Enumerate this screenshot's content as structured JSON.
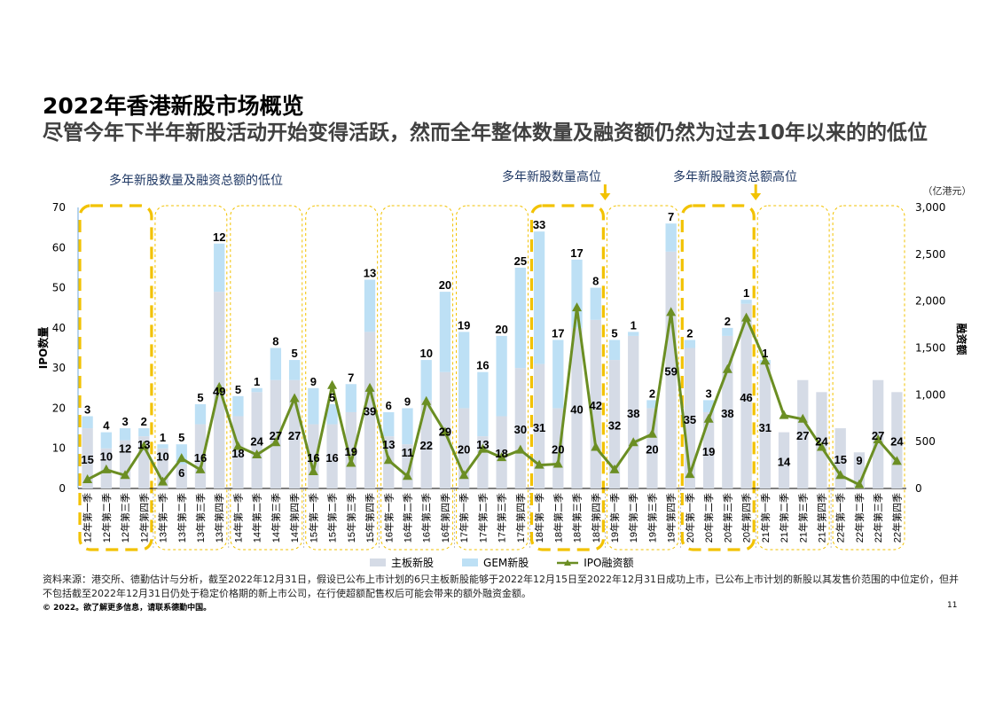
{
  "page": {
    "title": "2022年香港新股市场概览",
    "subtitle": "尽管今年下半年新股活动开始变得活跃，然而全年整体数量及融资额仍然为过去10年以来的的低位",
    "footer": "资料来源：港交所、德勤估计与分析，截至2022年12月31日，假设已公布上市计划的6只主板新股能够于2022年12月15日至2022年12月31日成功上市，已公布上市计划的新股以其发售价范围的中位定价，但并不包括截至2022年12月31日仍处于稳定价格期的新上市公司，在行使超额配售权后可能会带来的额外融资金额。",
    "copyright": "© 2022。欲了解更多信息，请联系德勤中国。",
    "page_number": "11"
  },
  "annotations": {
    "low_callout": "多年新股数量及融资总额的低位",
    "count_high_callout": "多年新股数量高位",
    "proceeds_high_callout": "多年新股融资总额高位"
  },
  "colors": {
    "main_board": "#d5dbe6",
    "gem": "#bde0f5",
    "ipo_line": "#6b8e23",
    "highlight": "#f2c200",
    "year_box": "#f2c200"
  },
  "chart_data": {
    "type": "bar",
    "stacked": true,
    "categories": [
      "12年第一季",
      "12年第二季",
      "12年第三季",
      "12年第四季",
      "13年第一季",
      "13年第二季",
      "13年第三季",
      "13年第四季",
      "14年第一季",
      "14年第二季",
      "14年第三季",
      "14年第四季",
      "15年第一季",
      "15年第二季",
      "15年第三季",
      "15年第四季",
      "16年第一季",
      "16年第二季",
      "16年第三季",
      "16年第四季",
      "17年第一季",
      "17年第二季",
      "17年第三季",
      "17年第四季",
      "18年第一季",
      "18年第二季",
      "18年第三季",
      "18年第四季",
      "19年第一季",
      "19年第二季",
      "19年第三季",
      "19年第四季",
      "20年第一季",
      "20年第二季",
      "20年第三季",
      "20年第四季",
      "21年第一季",
      "21年第二季",
      "21年第三季",
      "21年第四季",
      "22年第一季",
      "22年第二季",
      "22年第三季",
      "22年第四季"
    ],
    "series": [
      {
        "name": "主板新股",
        "axis": "left",
        "values": [
          15,
          10,
          12,
          13,
          10,
          6,
          16,
          49,
          18,
          24,
          27,
          27,
          16,
          16,
          19,
          39,
          13,
          11,
          22,
          29,
          20,
          13,
          18,
          30,
          31,
          20,
          40,
          42,
          32,
          38,
          20,
          59,
          35,
          19,
          38,
          46,
          31,
          14,
          27,
          24,
          15,
          9,
          27,
          24
        ]
      },
      {
        "name": "GEM新股",
        "axis": "left",
        "values": [
          3,
          4,
          3,
          2,
          1,
          5,
          5,
          12,
          5,
          1,
          8,
          5,
          9,
          5,
          7,
          13,
          6,
          9,
          10,
          20,
          19,
          16,
          20,
          25,
          33,
          17,
          17,
          8,
          5,
          1,
          2,
          7,
          2,
          3,
          2,
          1,
          1,
          0,
          0,
          0,
          0,
          0,
          0,
          0
        ]
      },
      {
        "name": "IPO融资额",
        "axis": "right",
        "type": "line",
        "values": [
          95,
          200,
          140,
          450,
          70,
          320,
          200,
          1080,
          450,
          360,
          490,
          960,
          180,
          1100,
          270,
          1070,
          300,
          130,
          930,
          600,
          140,
          420,
          330,
          410,
          250,
          260,
          1930,
          440,
          200,
          490,
          580,
          1880,
          150,
          740,
          1270,
          1820,
          1360,
          780,
          740,
          440,
          140,
          40,
          520,
          290
        ]
      }
    ],
    "bar_labels": {
      "main": [
        "15",
        "10",
        "12",
        "13",
        "10",
        "6",
        "16",
        "49",
        "18",
        "24",
        "27",
        "27",
        "16",
        "16",
        "19",
        "39",
        "13",
        "11",
        "22",
        "29",
        "20",
        "13",
        "18",
        "30",
        "31",
        "20",
        "40",
        "42",
        "32",
        "38",
        "20",
        "59",
        "35",
        "19",
        "38",
        "46",
        "31",
        "14",
        "27",
        "24",
        "15",
        "9",
        "27",
        "24"
      ],
      "gem": [
        "3",
        "4",
        "3",
        "2",
        "1",
        "5",
        "5",
        "12",
        "5",
        "1",
        "8",
        "5",
        "9",
        "5",
        "7",
        "13",
        "6",
        "9",
        "10",
        "20",
        "19",
        "16",
        "20",
        "25",
        "33",
        "17",
        "17",
        "8",
        "5",
        "1",
        "2",
        "7",
        "2",
        "3",
        "2",
        "1",
        "1",
        "",
        "",
        "",
        "",
        "",
        "",
        ""
      ]
    },
    "ylabel_left": "IPO数量",
    "ylabel_right": "融资额",
    "right_unit": "（亿港元）",
    "ylim_left": [
      0,
      70
    ],
    "ylim_right": [
      0,
      3000
    ],
    "yticks_left": [
      "0",
      "10",
      "20",
      "30",
      "40",
      "50",
      "60",
      "70"
    ],
    "yticks_right": [
      "0",
      "500",
      "1,000",
      "1,500",
      "2,000",
      "2,500",
      "3,000"
    ],
    "legend": [
      "主板新股",
      "GEM新股",
      "IPO融资额"
    ],
    "highlight_year_groups": [
      0,
      6,
      8
    ]
  }
}
